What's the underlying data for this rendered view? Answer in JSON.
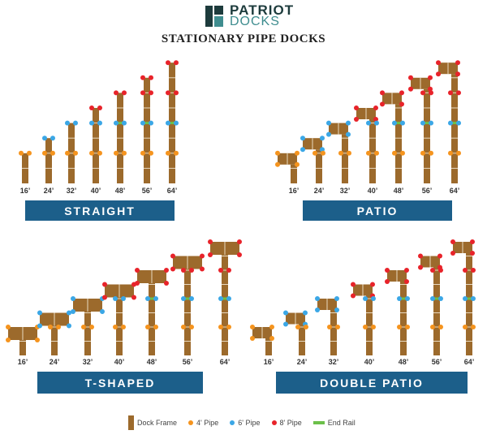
{
  "brand": {
    "name_line1": "PATRIOT",
    "name_line2": "DOCKS"
  },
  "title": "STATIONARY PIPE DOCKS",
  "colors": {
    "frame": "#9c6a2c",
    "pipe_4": "#f5941e",
    "pipe_6": "#3ba7e6",
    "pipe_8": "#e8232a",
    "end_rail": "#6cc04a",
    "banner": "#1c5f8a"
  },
  "lengths": [
    "16’",
    "24’",
    "32’",
    "40’",
    "48’",
    "56’",
    "64’"
  ],
  "pipe_levels_ft": {
    "16": [
      [
        16,
        "4"
      ]
    ],
    "24": [
      [
        16,
        "4"
      ],
      [
        24,
        "6"
      ]
    ],
    "32": [
      [
        16,
        "4"
      ],
      [
        32,
        "6"
      ]
    ],
    "40": [
      [
        16,
        "4"
      ],
      [
        32,
        "6"
      ],
      [
        40,
        "8"
      ]
    ],
    "48": [
      [
        16,
        "4"
      ],
      [
        32,
        "6",
        "rail"
      ],
      [
        48,
        "8"
      ]
    ],
    "56": [
      [
        16,
        "4"
      ],
      [
        32,
        "6",
        "rail"
      ],
      [
        48,
        "8"
      ],
      [
        56,
        "8"
      ]
    ],
    "64": [
      [
        16,
        "4"
      ],
      [
        32,
        "6",
        "rail"
      ],
      [
        48,
        "8"
      ],
      [
        64,
        "8"
      ]
    ]
  },
  "panels": [
    {
      "label": "STRAIGHT",
      "style": "straight"
    },
    {
      "label": "PATIO",
      "style": "patio"
    },
    {
      "label": "T-SHAPED",
      "style": "t"
    },
    {
      "label": "DOUBLE PATIO",
      "style": "double"
    }
  ],
  "legend": [
    {
      "label": "Dock Frame",
      "kind": "frame"
    },
    {
      "label": "4' Pipe",
      "kind": "pipe_4"
    },
    {
      "label": "6' Pipe",
      "kind": "pipe_6"
    },
    {
      "label": "8' Pipe",
      "kind": "pipe_8"
    },
    {
      "label": "End Rail",
      "kind": "end_rail"
    }
  ]
}
